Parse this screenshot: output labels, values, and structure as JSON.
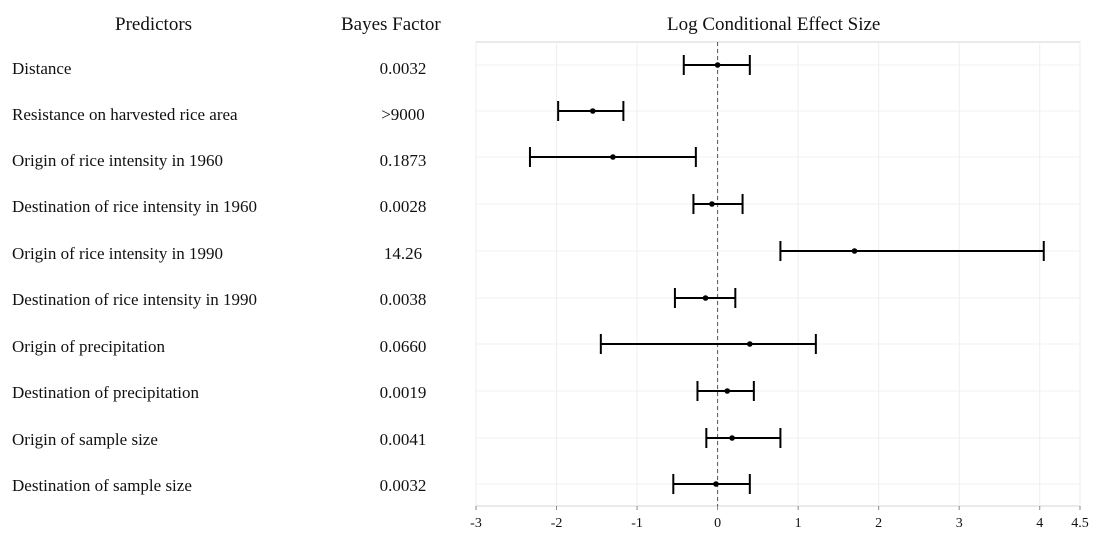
{
  "headers": {
    "predictors": "Predictors",
    "bayes_factor": "Bayes Factor",
    "effect_size": "Log Conditional Effect Size"
  },
  "rows": [
    {
      "predictor": "Distance",
      "bayes_factor": "0.0032"
    },
    {
      "predictor": "Resistance on harvested rice area",
      "bayes_factor": ">9000"
    },
    {
      "predictor": "Origin of rice intensity in 1960",
      "bayes_factor": "0.1873"
    },
    {
      "predictor": "Destination of rice intensity in 1960",
      "bayes_factor": "0.0028"
    },
    {
      "predictor": "Origin of rice intensity in 1990",
      "bayes_factor": "14.26"
    },
    {
      "predictor": "Destination of rice intensity in 1990",
      "bayes_factor": "0.0038"
    },
    {
      "predictor": "Origin of precipitation",
      "bayes_factor": "0.0660"
    },
    {
      "predictor": "Destination of precipitation",
      "bayes_factor": "0.0019"
    },
    {
      "predictor": "Origin of sample size",
      "bayes_factor": "0.0041"
    },
    {
      "predictor": "Destination of sample size",
      "bayes_factor": "0.0032"
    }
  ],
  "chart_data": {
    "type": "errorbar",
    "title": "Log Conditional Effect Size",
    "xlim": [
      -3,
      4.5
    ],
    "xticks": [
      -3,
      -2,
      -1,
      0,
      1,
      2,
      3,
      4,
      4.5
    ],
    "xtick_labels": [
      "-3",
      "-2",
      "-1",
      "0",
      "1",
      "2",
      "3",
      "4",
      "4.5"
    ],
    "reference_line": 0,
    "grid": true,
    "categories": [
      "Distance",
      "Resistance on harvested rice area",
      "Origin of rice intensity in 1960",
      "Destination of rice intensity in 1960",
      "Origin of rice intensity in 1990",
      "Destination of rice intensity in 1990",
      "Origin of precipitation",
      "Destination of precipitation",
      "Origin of sample size",
      "Destination of sample size"
    ],
    "estimates": [
      0.0,
      -1.55,
      -1.3,
      -0.07,
      1.7,
      -0.15,
      0.4,
      0.12,
      0.18,
      -0.02
    ],
    "lower": [
      -0.42,
      -1.98,
      -2.33,
      -0.3,
      0.78,
      -0.53,
      -1.45,
      -0.25,
      -0.14,
      -0.55
    ],
    "upper": [
      0.4,
      -1.17,
      -0.27,
      0.31,
      4.05,
      0.22,
      1.22,
      0.45,
      0.78,
      0.4
    ]
  }
}
